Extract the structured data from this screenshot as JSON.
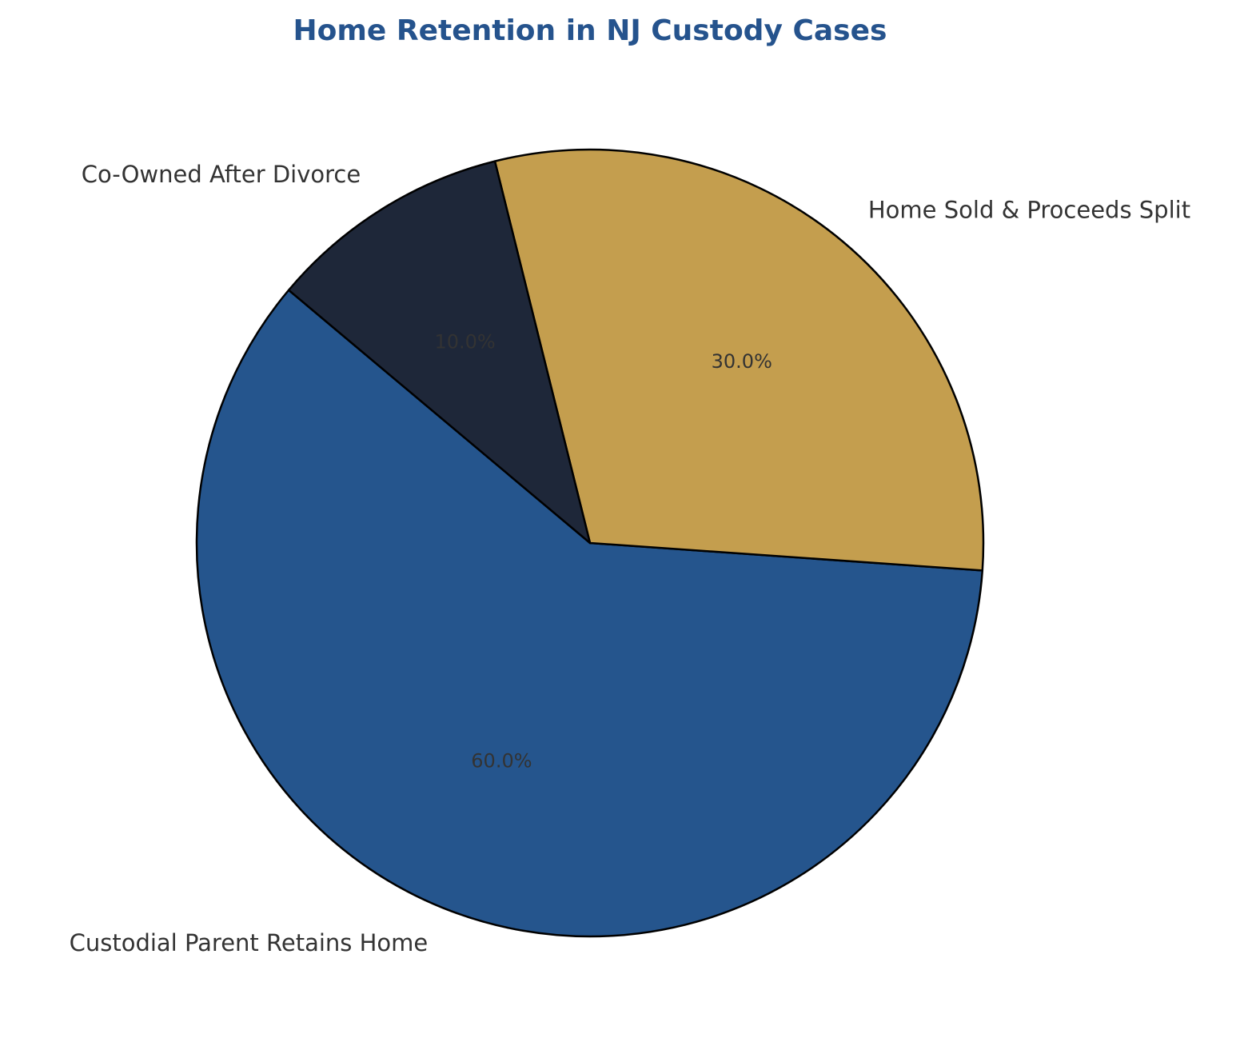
{
  "chart_data": {
    "type": "pie",
    "title": "Home Retention in NJ Custody Cases",
    "title_color": "#25538D",
    "start_angle_deg": 140,
    "direction": "counterclockwise",
    "slices": [
      {
        "label": "Custodial Parent Retains Home",
        "value": 60.0,
        "pct_text": "60.0%",
        "color": "#25558D"
      },
      {
        "label": "Home Sold & Proceeds Split",
        "value": 30.0,
        "pct_text": "30.0%",
        "color": "#C49E4E"
      },
      {
        "label": "Co-Owned After Divorce",
        "value": 10.0,
        "pct_text": "10.0%",
        "color": "#1E2739"
      }
    ],
    "edge_color": "#000000",
    "label_color": "#333333"
  }
}
